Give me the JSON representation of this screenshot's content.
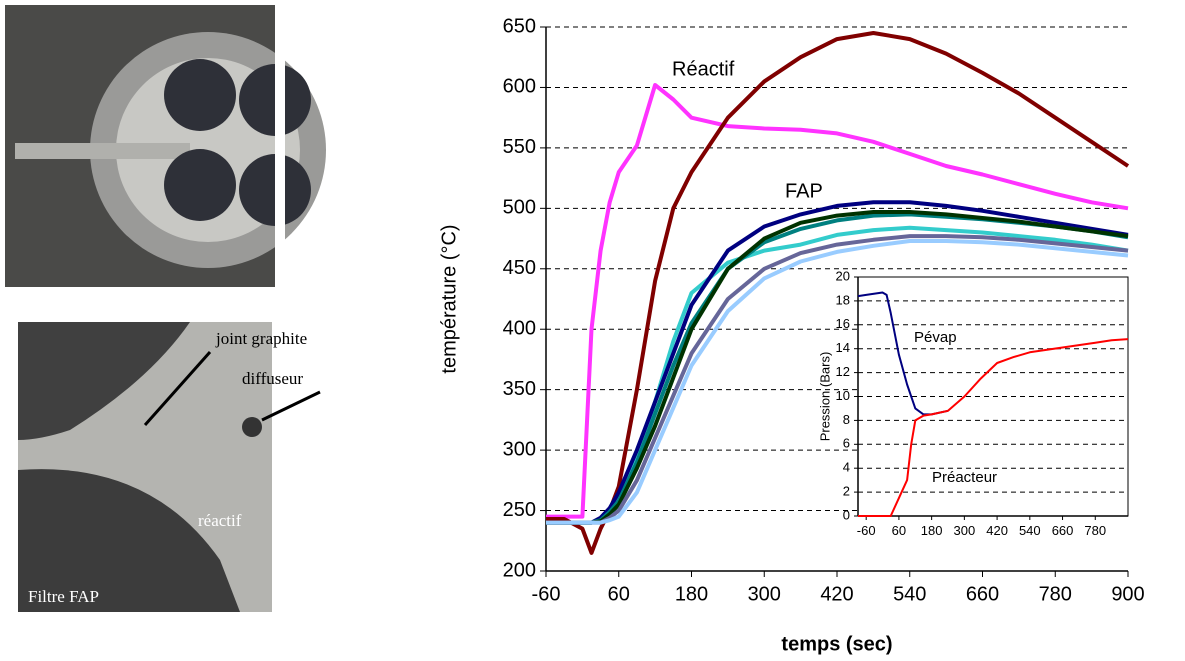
{
  "photo_labels": [
    "joint graphite",
    "diffuseur",
    "réactif",
    "Filtre FAP"
  ],
  "chart_data": [
    {
      "type": "line",
      "xlabel": "temps (sec)",
      "ylabel": "température (°C)",
      "annotations": [
        "Réactif",
        "FAP"
      ],
      "x": [
        -60,
        -30,
        0,
        15,
        30,
        45,
        60,
        90,
        120,
        150,
        180,
        240,
        300,
        360,
        420,
        480,
        540,
        600,
        660,
        720,
        780,
        840,
        900
      ],
      "series": [
        {
          "color": "#ff33ff",
          "values": [
            245,
            245,
            245,
            400,
            465,
            505,
            530,
            552,
            602,
            590,
            575,
            568,
            566,
            565,
            562,
            555,
            545,
            535,
            528,
            520,
            512,
            505,
            500
          ]
        },
        {
          "color": "#800000",
          "values": [
            243,
            243,
            235,
            215,
            235,
            250,
            270,
            350,
            440,
            500,
            530,
            575,
            605,
            625,
            640,
            645,
            640,
            628,
            612,
            595,
            575,
            555,
            535
          ]
        },
        {
          "color": "#33cccc",
          "values": [
            240,
            240,
            240,
            240,
            243,
            250,
            262,
            295,
            340,
            390,
            430,
            455,
            465,
            470,
            478,
            482,
            484,
            482,
            480,
            477,
            474,
            470,
            465
          ]
        },
        {
          "color": "#000080",
          "values": [
            240,
            240,
            240,
            240,
            244,
            252,
            265,
            300,
            340,
            380,
            420,
            465,
            485,
            495,
            502,
            505,
            505,
            502,
            498,
            493,
            488,
            483,
            478
          ]
        },
        {
          "color": "#008080",
          "values": [
            240,
            240,
            240,
            240,
            242,
            249,
            258,
            290,
            330,
            370,
            405,
            450,
            472,
            483,
            490,
            494,
            495,
            493,
            491,
            488,
            485,
            481,
            476
          ]
        },
        {
          "color": "#003300",
          "values": [
            240,
            240,
            240,
            240,
            241,
            247,
            255,
            285,
            320,
            360,
            400,
            450,
            475,
            488,
            494,
            497,
            497,
            495,
            492,
            489,
            485,
            481,
            477
          ]
        },
        {
          "color": "#666699",
          "values": [
            240,
            240,
            240,
            240,
            240,
            244,
            250,
            275,
            310,
            345,
            380,
            425,
            450,
            463,
            470,
            474,
            477,
            477,
            476,
            474,
            471,
            468,
            465
          ]
        },
        {
          "color": "#99ccff",
          "values": [
            240,
            240,
            240,
            240,
            240,
            242,
            245,
            265,
            300,
            335,
            370,
            415,
            442,
            456,
            464,
            469,
            473,
            473,
            472,
            470,
            467,
            464,
            461
          ]
        }
      ],
      "xlim": [
        -60,
        900
      ],
      "xticks": [
        -60,
        60,
        180,
        300,
        420,
        540,
        660,
        780,
        900
      ],
      "ylim": [
        200,
        650
      ],
      "yticks": [
        200,
        250,
        300,
        350,
        400,
        450,
        500,
        550,
        600,
        650
      ],
      "grid": true
    },
    {
      "type": "line",
      "ylabel": "Pression (Bars)",
      "annotations": [
        "Pévap",
        "Préacteur"
      ],
      "series": [
        {
          "color": "#000080",
          "x": [
            -90,
            -60,
            0,
            15,
            30,
            60,
            90,
            120,
            150,
            180,
            240
          ],
          "values": [
            18.4,
            18.5,
            18.7,
            18.5,
            17,
            13.5,
            11,
            9,
            8.5,
            8.5,
            8.8
          ]
        },
        {
          "color": "#ff0000",
          "x": [
            -90,
            30,
            60,
            90,
            105,
            120,
            150,
            180,
            240,
            300,
            360,
            420,
            480,
            540,
            600,
            660,
            720,
            780,
            840,
            900
          ],
          "values": [
            0,
            0,
            1.5,
            3,
            6,
            8,
            8.4,
            8.5,
            8.8,
            10,
            11.5,
            12.8,
            13.3,
            13.7,
            13.9,
            14.1,
            14.3,
            14.5,
            14.7,
            14.8
          ]
        }
      ],
      "xlim": [
        -90,
        900
      ],
      "xticks": [
        -60,
        60,
        180,
        300,
        420,
        540,
        660,
        780
      ],
      "ylim": [
        0,
        20
      ],
      "yticks": [
        0,
        2,
        4,
        6,
        8,
        10,
        12,
        14,
        16,
        18,
        20
      ],
      "grid": true
    }
  ]
}
